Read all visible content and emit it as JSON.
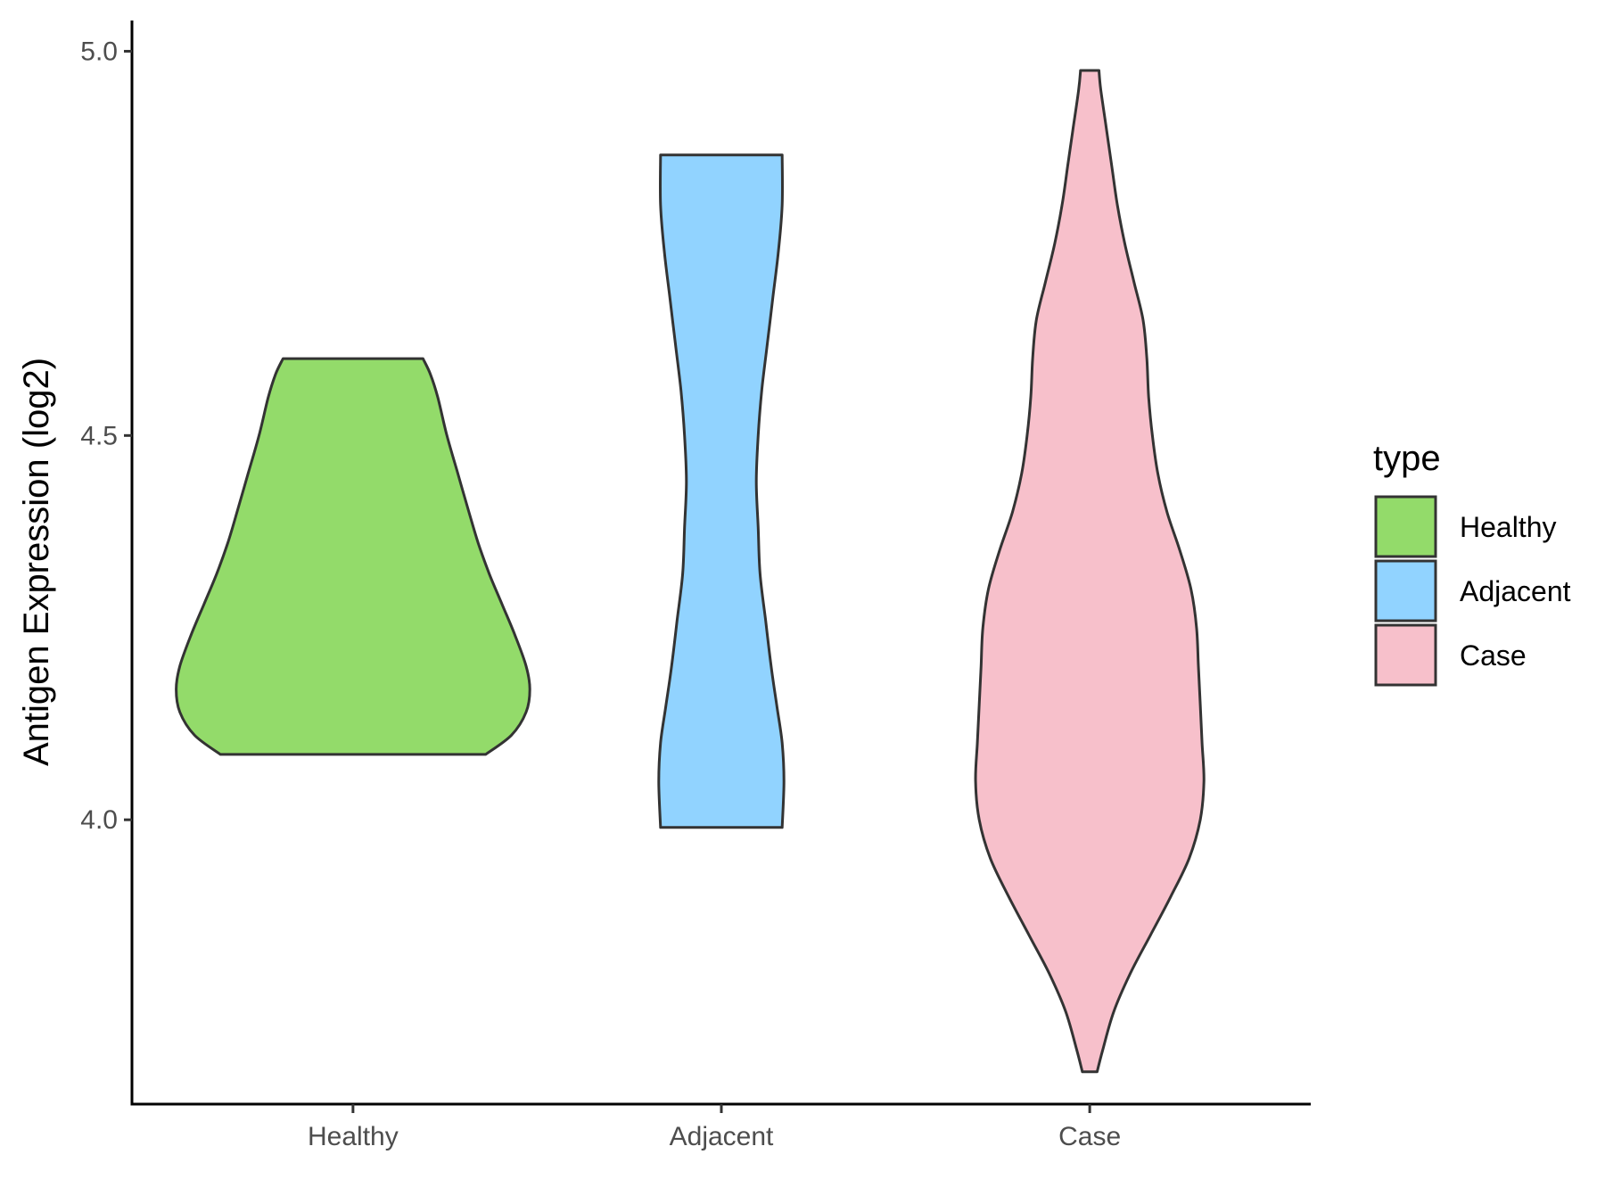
{
  "chart_data": {
    "type": "violin",
    "title": "",
    "xlabel": "",
    "ylabel": "Antigen Expression (log2)",
    "ylim": [
      3.63,
      5.04
    ],
    "yticks": [
      "4.0",
      "4.5",
      "5.0"
    ],
    "ytick_values": [
      4.0,
      4.5,
      5.0
    ],
    "grid": false,
    "legend": {
      "title": "type",
      "placement": "right"
    },
    "categories": [
      "Healthy",
      "Adjacent",
      "Case"
    ],
    "series": [
      {
        "name": "Healthy",
        "color": "#93DB6A",
        "min": 4.085,
        "max": 4.6,
        "profile": [
          [
            4.085,
            0.72
          ],
          [
            4.11,
            0.86
          ],
          [
            4.14,
            0.94
          ],
          [
            4.17,
            0.96
          ],
          [
            4.2,
            0.94
          ],
          [
            4.24,
            0.88
          ],
          [
            4.28,
            0.81
          ],
          [
            4.32,
            0.74
          ],
          [
            4.36,
            0.68
          ],
          [
            4.4,
            0.63
          ],
          [
            4.45,
            0.57
          ],
          [
            4.5,
            0.51
          ],
          [
            4.55,
            0.46
          ],
          [
            4.58,
            0.42
          ],
          [
            4.6,
            0.38
          ]
        ]
      },
      {
        "name": "Adjacent",
        "color": "#91D3FF",
        "min": 3.99,
        "max": 4.865,
        "profile": [
          [
            3.99,
            0.33
          ],
          [
            4.05,
            0.34
          ],
          [
            4.1,
            0.33
          ],
          [
            4.15,
            0.3
          ],
          [
            4.2,
            0.27
          ],
          [
            4.26,
            0.24
          ],
          [
            4.32,
            0.21
          ],
          [
            4.38,
            0.2
          ],
          [
            4.44,
            0.19
          ],
          [
            4.5,
            0.2
          ],
          [
            4.56,
            0.22
          ],
          [
            4.62,
            0.25
          ],
          [
            4.68,
            0.28
          ],
          [
            4.74,
            0.31
          ],
          [
            4.8,
            0.33
          ],
          [
            4.865,
            0.33
          ]
        ]
      },
      {
        "name": "Case",
        "color": "#F7C0CB",
        "min": 3.672,
        "max": 4.975,
        "profile": [
          [
            3.672,
            0.04
          ],
          [
            3.7,
            0.07
          ],
          [
            3.75,
            0.13
          ],
          [
            3.8,
            0.22
          ],
          [
            3.85,
            0.33
          ],
          [
            3.9,
            0.44
          ],
          [
            3.95,
            0.54
          ],
          [
            4.0,
            0.6
          ],
          [
            4.05,
            0.62
          ],
          [
            4.1,
            0.61
          ],
          [
            4.15,
            0.6
          ],
          [
            4.2,
            0.59
          ],
          [
            4.25,
            0.58
          ],
          [
            4.3,
            0.55
          ],
          [
            4.35,
            0.49
          ],
          [
            4.4,
            0.42
          ],
          [
            4.45,
            0.37
          ],
          [
            4.5,
            0.34
          ],
          [
            4.55,
            0.32
          ],
          [
            4.6,
            0.31
          ],
          [
            4.65,
            0.29
          ],
          [
            4.7,
            0.24
          ],
          [
            4.75,
            0.19
          ],
          [
            4.8,
            0.15
          ],
          [
            4.85,
            0.12
          ],
          [
            4.9,
            0.09
          ],
          [
            4.95,
            0.06
          ],
          [
            4.975,
            0.05
          ]
        ]
      }
    ]
  },
  "legend": {
    "title": "type",
    "items": [
      {
        "label": "Healthy",
        "color": "#93DB6A"
      },
      {
        "label": "Adjacent",
        "color": "#91D3FF"
      },
      {
        "label": "Case",
        "color": "#F7C0CB"
      }
    ]
  }
}
